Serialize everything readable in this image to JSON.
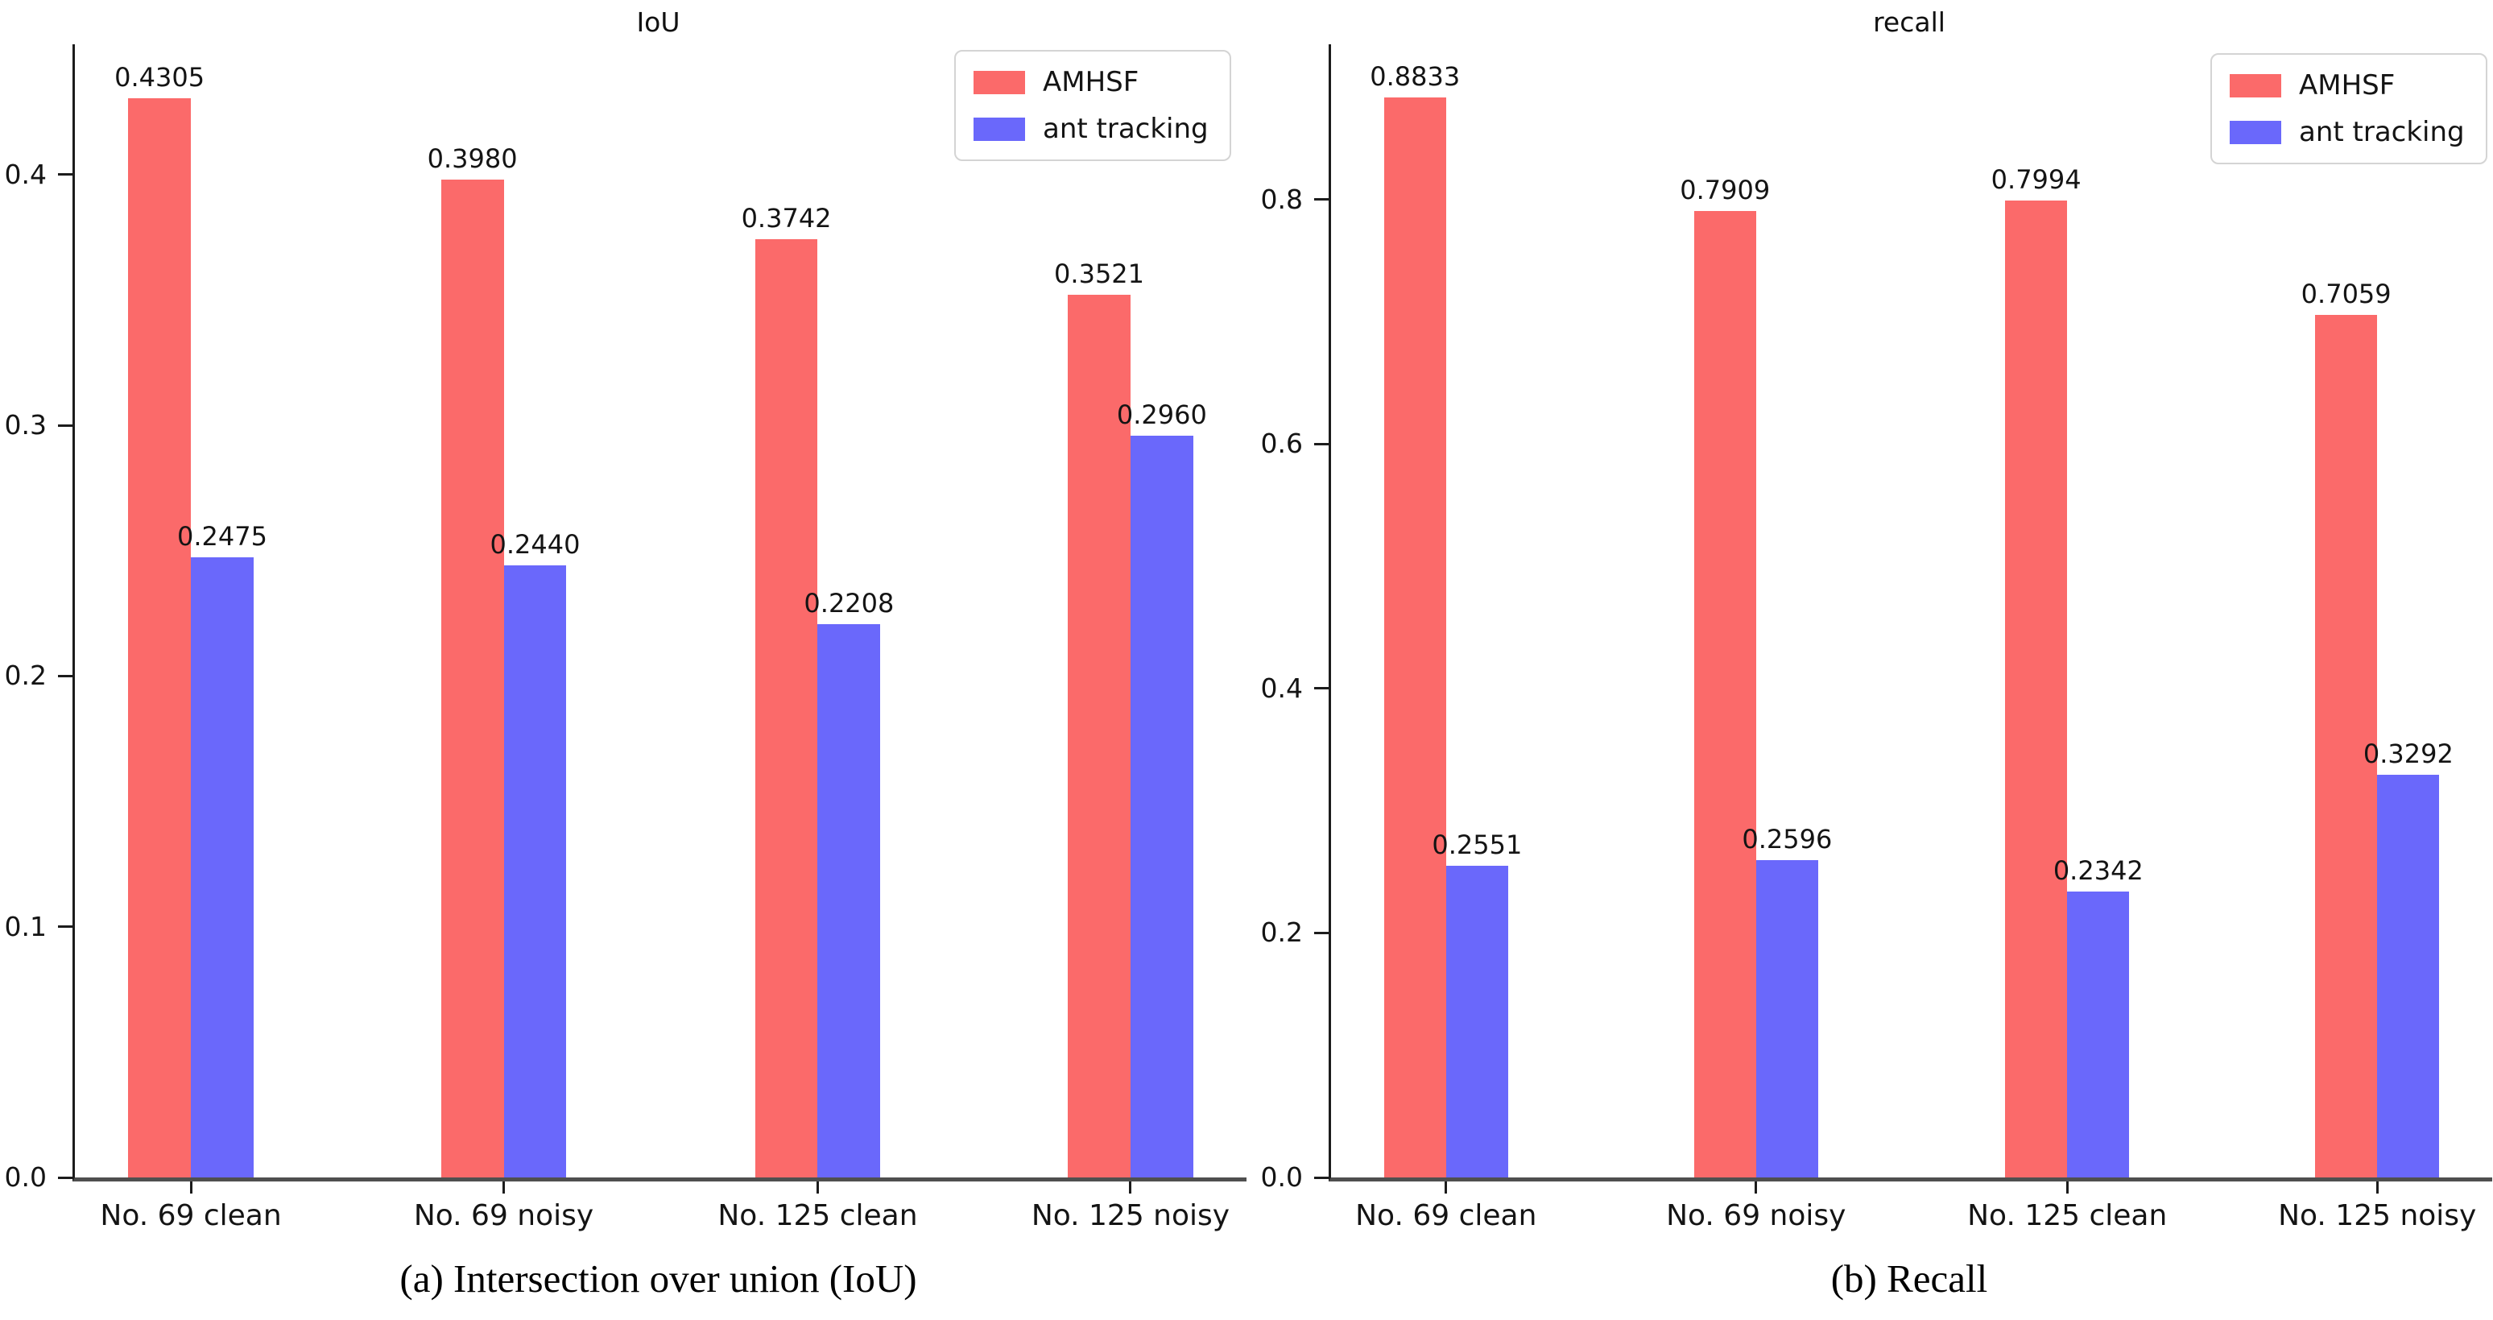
{
  "figure": {
    "background": "#ffffff",
    "text_color": "#141414",
    "axis_color": "#1c1c1c"
  },
  "chart_data": [
    {
      "type": "bar",
      "title": "IoU",
      "caption": "(a) Intersection over union (IoU)",
      "categories": [
        "No. 69 clean",
        "No. 69 noisy",
        "No. 125 clean",
        "No. 125 noisy"
      ],
      "series": [
        {
          "name": "AMHSF",
          "color": "#fb6a6a",
          "values": [
            0.4305,
            0.398,
            0.3742,
            0.3521
          ],
          "labels": [
            "0.4305",
            "0.3980",
            "0.3742",
            "0.3521"
          ]
        },
        {
          "name": "ant tracking",
          "color": "#6a68fb",
          "values": [
            0.2475,
            0.244,
            0.2208,
            0.296
          ],
          "labels": [
            "0.2475",
            "0.2440",
            "0.2208",
            "0.2960"
          ]
        }
      ],
      "ylim": [
        0,
        0.452
      ],
      "yticks": {
        "values": [
          0.0,
          0.1,
          0.2,
          0.3,
          0.4
        ],
        "labels": [
          "0.0",
          "0.1",
          "0.2",
          "0.3",
          "0.4"
        ]
      },
      "xlabel": "",
      "ylabel": "",
      "grid": false,
      "legend_position": "upper right"
    },
    {
      "type": "bar",
      "title": "recall",
      "caption": "(b) Recall",
      "categories": [
        "No. 69 clean",
        "No. 69 noisy",
        "No. 125 clean",
        "No. 125 noisy"
      ],
      "series": [
        {
          "name": "AMHSF",
          "color": "#fb6a6a",
          "values": [
            0.8833,
            0.7909,
            0.7994,
            0.7059
          ],
          "labels": [
            "0.8833",
            "0.7909",
            "0.7994",
            "0.7059"
          ]
        },
        {
          "name": "ant tracking",
          "color": "#6a68fb",
          "values": [
            0.2551,
            0.2596,
            0.2342,
            0.3292
          ],
          "labels": [
            "0.2551",
            "0.2596",
            "0.2342",
            "0.3292"
          ]
        }
      ],
      "ylim": [
        0,
        0.927
      ],
      "yticks": {
        "values": [
          0.0,
          0.2,
          0.4,
          0.6,
          0.8
        ],
        "labels": [
          "0.0",
          "0.2",
          "0.4",
          "0.6",
          "0.8"
        ]
      },
      "xlabel": "",
      "ylabel": "",
      "grid": false,
      "legend_position": "upper right"
    }
  ]
}
